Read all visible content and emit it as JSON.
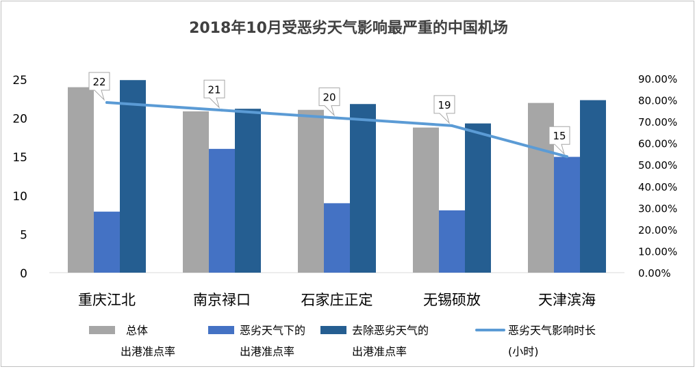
{
  "chart_data": {
    "type": "bar",
    "title": "2018年10月受恶劣天气影响最严重的中国机场",
    "categories": [
      "重庆江北",
      "南京禄口",
      "石家庄正定",
      "无锡硕放",
      "天津滨海"
    ],
    "series": [
      {
        "name": "总体 出港准点率",
        "legend_lines": [
          "总体",
          "出港准点率"
        ],
        "kind": "bar",
        "axis": "right",
        "color": "#a6a6a6",
        "unit": "%",
        "values": [
          86.0,
          74.8,
          75.5,
          67.3,
          78.7
        ]
      },
      {
        "name": "恶劣天气下的 出港准点率",
        "legend_lines": [
          "恶劣天气下的",
          "出港准点率"
        ],
        "kind": "bar",
        "axis": "right",
        "color": "#4472c4",
        "unit": "%",
        "values": [
          28.3,
          57.4,
          32.2,
          28.9,
          53.7
        ]
      },
      {
        "name": "去除恶劣天气的 出港准点率",
        "legend_lines": [
          "去除恶劣天气的",
          "出港准点率"
        ],
        "kind": "bar",
        "axis": "right",
        "color": "#255e91",
        "unit": "%",
        "values": [
          89.3,
          76.0,
          78.2,
          69.2,
          80.0
        ]
      },
      {
        "name": "恶劣天气影响时长 (小时)",
        "legend_lines": [
          "恶劣天气影响时长",
          "(小时)"
        ],
        "kind": "line",
        "axis": "left",
        "color": "#5b9bd5",
        "values": [
          22,
          21,
          20,
          19,
          15
        ],
        "data_labels": [
          "22",
          "21",
          "20",
          "19",
          "15"
        ]
      }
    ],
    "left_axis": {
      "min": 0,
      "max": 25,
      "ticks": [
        0,
        5,
        10,
        15,
        20,
        25
      ],
      "tick_labels": [
        "0",
        "5",
        "10",
        "15",
        "20",
        "25"
      ]
    },
    "right_axis": {
      "min": 0,
      "max": 90,
      "ticks": [
        0,
        10,
        20,
        30,
        40,
        50,
        60,
        70,
        80,
        90
      ],
      "tick_labels": [
        "0.00%",
        "10.00%",
        "20.00%",
        "30.00%",
        "40.00%",
        "50.00%",
        "60.00%",
        "70.00%",
        "80.00%",
        "90.00%"
      ]
    },
    "grid": false,
    "legend_position": "bottom"
  }
}
